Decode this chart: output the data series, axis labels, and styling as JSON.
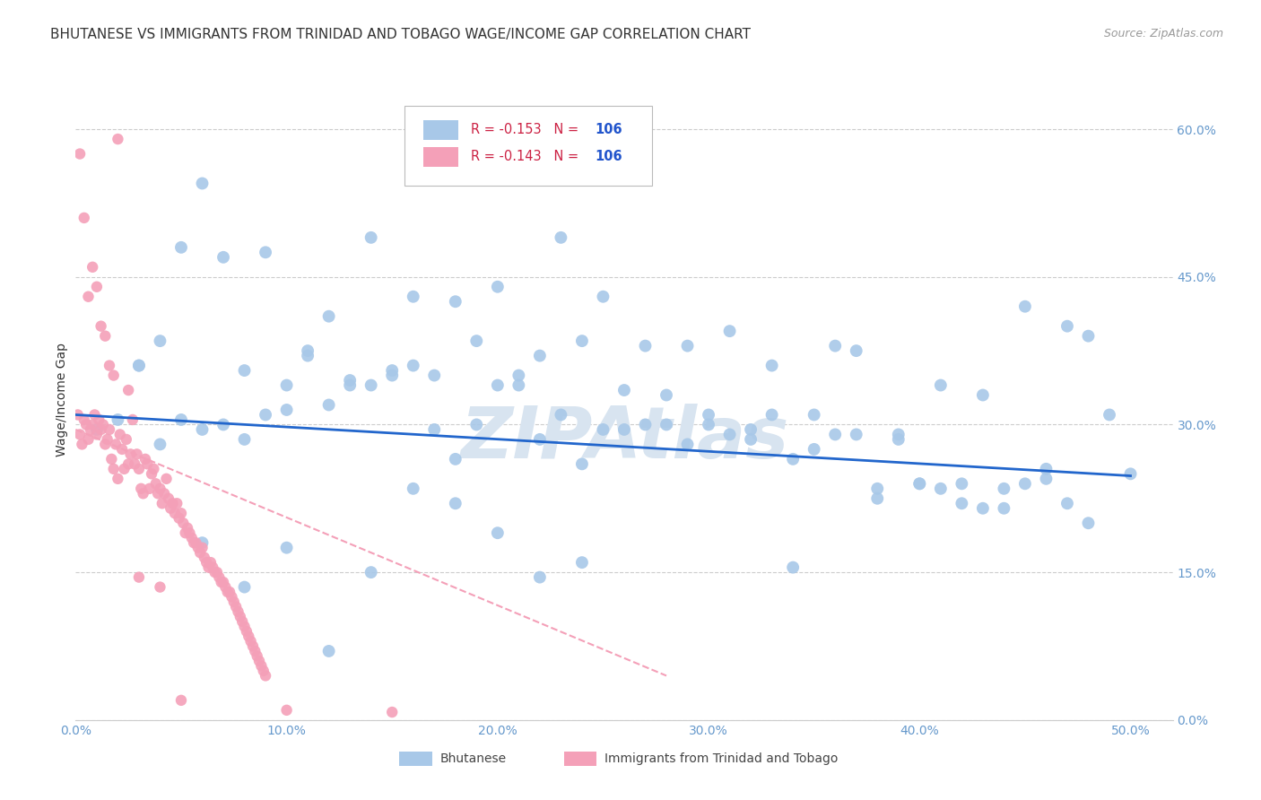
{
  "title": "BHUTANESE VS IMMIGRANTS FROM TRINIDAD AND TOBAGO WAGE/INCOME GAP CORRELATION CHART",
  "source": "Source: ZipAtlas.com",
  "ylabel_label": "Wage/Income Gap",
  "xlim": [
    0.0,
    0.52
  ],
  "ylim": [
    0.0,
    0.65
  ],
  "blue_R": -0.153,
  "pink_R": -0.143,
  "N": 106,
  "blue_color": "#a8c8e8",
  "pink_color": "#f4a0b8",
  "blue_line_color": "#2266cc",
  "pink_line_color": "#f4a0b8",
  "watermark_text": "ZIPAtlas",
  "watermark_color": "#d8e4f0",
  "title_color": "#333333",
  "axis_label_color": "#6699cc",
  "legend_R_color": "#cc2244",
  "legend_N_color": "#2255cc",
  "background_color": "#ffffff",
  "grid_color": "#cccccc",
  "blue_scatter_x": [
    0.01,
    0.02,
    0.03,
    0.04,
    0.05,
    0.06,
    0.07,
    0.08,
    0.09,
    0.1,
    0.11,
    0.12,
    0.13,
    0.14,
    0.15,
    0.16,
    0.17,
    0.18,
    0.19,
    0.2,
    0.21,
    0.22,
    0.23,
    0.24,
    0.25,
    0.26,
    0.27,
    0.28,
    0.29,
    0.3,
    0.31,
    0.32,
    0.33,
    0.34,
    0.35,
    0.36,
    0.37,
    0.38,
    0.39,
    0.4,
    0.41,
    0.42,
    0.43,
    0.44,
    0.45,
    0.46,
    0.47,
    0.48,
    0.49,
    0.5,
    0.05,
    0.07,
    0.09,
    0.11,
    0.13,
    0.15,
    0.17,
    0.19,
    0.21,
    0.23,
    0.25,
    0.27,
    0.29,
    0.31,
    0.33,
    0.35,
    0.37,
    0.39,
    0.41,
    0.43,
    0.45,
    0.47,
    0.03,
    0.06,
    0.08,
    0.1,
    0.12,
    0.14,
    0.16,
    0.18,
    0.2,
    0.22,
    0.24,
    0.26,
    0.28,
    0.3,
    0.32,
    0.34,
    0.36,
    0.38,
    0.4,
    0.42,
    0.44,
    0.46,
    0.48,
    0.04,
    0.06,
    0.08,
    0.1,
    0.12,
    0.14,
    0.16,
    0.18,
    0.2,
    0.22,
    0.24
  ],
  "blue_scatter_y": [
    0.295,
    0.305,
    0.36,
    0.385,
    0.305,
    0.295,
    0.3,
    0.285,
    0.31,
    0.315,
    0.375,
    0.32,
    0.345,
    0.34,
    0.355,
    0.36,
    0.295,
    0.265,
    0.3,
    0.34,
    0.34,
    0.285,
    0.31,
    0.26,
    0.295,
    0.295,
    0.3,
    0.33,
    0.28,
    0.31,
    0.29,
    0.295,
    0.31,
    0.265,
    0.275,
    0.29,
    0.29,
    0.235,
    0.29,
    0.24,
    0.235,
    0.24,
    0.215,
    0.215,
    0.24,
    0.255,
    0.22,
    0.39,
    0.31,
    0.25,
    0.48,
    0.47,
    0.475,
    0.37,
    0.34,
    0.35,
    0.35,
    0.385,
    0.35,
    0.49,
    0.43,
    0.38,
    0.38,
    0.395,
    0.36,
    0.31,
    0.375,
    0.285,
    0.34,
    0.33,
    0.42,
    0.4,
    0.36,
    0.545,
    0.355,
    0.34,
    0.41,
    0.49,
    0.43,
    0.425,
    0.44,
    0.37,
    0.385,
    0.335,
    0.3,
    0.3,
    0.285,
    0.155,
    0.38,
    0.225,
    0.24,
    0.22,
    0.235,
    0.245,
    0.2,
    0.28,
    0.18,
    0.135,
    0.175,
    0.07,
    0.15,
    0.235,
    0.22,
    0.19,
    0.145,
    0.16
  ],
  "pink_scatter_x": [
    0.001,
    0.002,
    0.003,
    0.004,
    0.005,
    0.006,
    0.007,
    0.008,
    0.009,
    0.01,
    0.011,
    0.012,
    0.013,
    0.014,
    0.015,
    0.016,
    0.017,
    0.018,
    0.019,
    0.02,
    0.021,
    0.022,
    0.023,
    0.024,
    0.025,
    0.026,
    0.027,
    0.028,
    0.029,
    0.03,
    0.031,
    0.032,
    0.033,
    0.034,
    0.035,
    0.036,
    0.037,
    0.038,
    0.039,
    0.04,
    0.041,
    0.042,
    0.043,
    0.044,
    0.045,
    0.046,
    0.047,
    0.048,
    0.049,
    0.05,
    0.051,
    0.052,
    0.053,
    0.054,
    0.055,
    0.056,
    0.057,
    0.058,
    0.059,
    0.06,
    0.061,
    0.062,
    0.063,
    0.064,
    0.065,
    0.066,
    0.067,
    0.068,
    0.069,
    0.07,
    0.071,
    0.072,
    0.073,
    0.074,
    0.075,
    0.076,
    0.077,
    0.078,
    0.079,
    0.08,
    0.081,
    0.082,
    0.083,
    0.084,
    0.085,
    0.086,
    0.087,
    0.088,
    0.089,
    0.09,
    0.002,
    0.004,
    0.006,
    0.008,
    0.01,
    0.012,
    0.014,
    0.016,
    0.018,
    0.02,
    0.025,
    0.03,
    0.04,
    0.05,
    0.1,
    0.15
  ],
  "pink_scatter_y": [
    0.31,
    0.29,
    0.28,
    0.305,
    0.3,
    0.285,
    0.295,
    0.3,
    0.31,
    0.29,
    0.305,
    0.295,
    0.3,
    0.28,
    0.285,
    0.295,
    0.265,
    0.255,
    0.28,
    0.245,
    0.29,
    0.275,
    0.255,
    0.285,
    0.26,
    0.27,
    0.305,
    0.26,
    0.27,
    0.255,
    0.235,
    0.23,
    0.265,
    0.26,
    0.235,
    0.25,
    0.255,
    0.24,
    0.23,
    0.235,
    0.22,
    0.23,
    0.245,
    0.225,
    0.215,
    0.22,
    0.21,
    0.22,
    0.205,
    0.21,
    0.2,
    0.19,
    0.195,
    0.19,
    0.185,
    0.18,
    0.18,
    0.175,
    0.17,
    0.175,
    0.165,
    0.16,
    0.155,
    0.16,
    0.155,
    0.15,
    0.15,
    0.145,
    0.14,
    0.14,
    0.135,
    0.13,
    0.13,
    0.125,
    0.12,
    0.115,
    0.11,
    0.105,
    0.1,
    0.095,
    0.09,
    0.085,
    0.08,
    0.075,
    0.07,
    0.065,
    0.06,
    0.055,
    0.05,
    0.045,
    0.575,
    0.51,
    0.43,
    0.46,
    0.44,
    0.4,
    0.39,
    0.36,
    0.35,
    0.59,
    0.335,
    0.145,
    0.135,
    0.02,
    0.01,
    0.008
  ],
  "blue_trend_x": [
    0.0,
    0.5
  ],
  "blue_trend_y": [
    0.31,
    0.248
  ],
  "pink_trend_x": [
    0.0,
    0.28
  ],
  "pink_trend_y": [
    0.295,
    0.045
  ]
}
